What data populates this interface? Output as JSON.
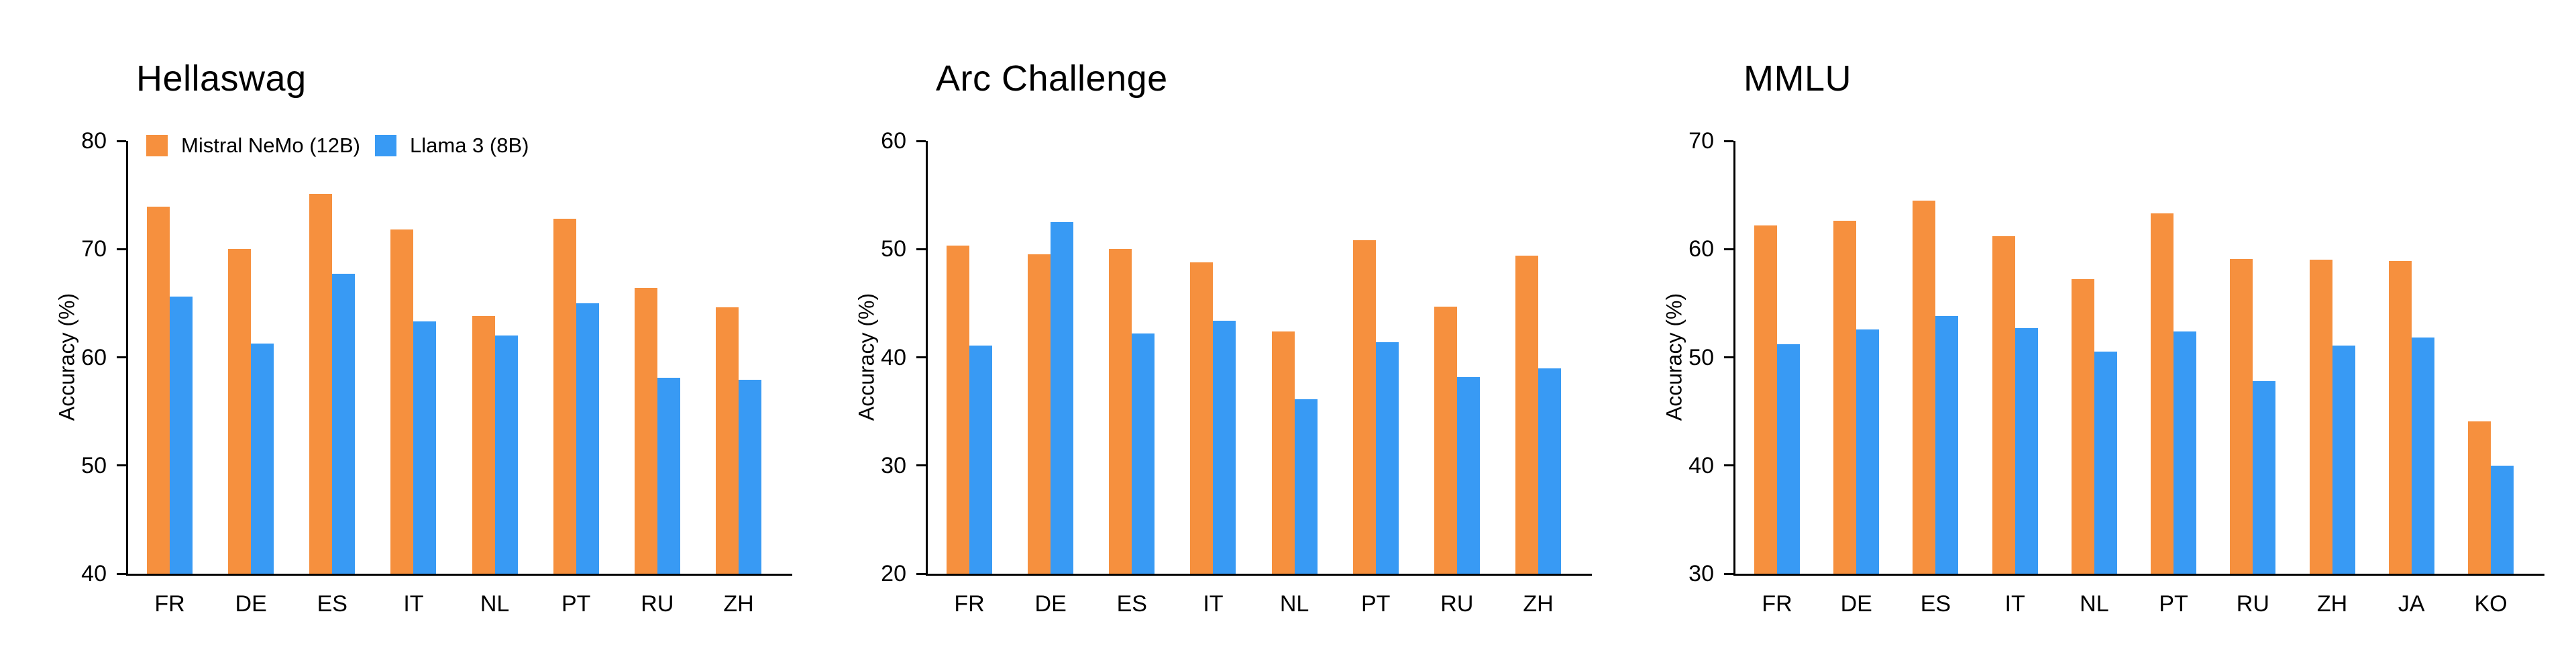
{
  "figure": {
    "y_axis_title": "Accuracy (%)",
    "colors": {
      "mistral_orange": "#F6903E",
      "llama_blue": "#389AF4"
    }
  },
  "legend": {
    "items": [
      {
        "label": "Mistral NeMo (12B)",
        "color": "#F6903E"
      },
      {
        "label": "Llama 3 (8B)",
        "color": "#389AF4"
      }
    ]
  },
  "chart_data": [
    {
      "type": "bar",
      "title": "Hellaswag",
      "ylabel": "Accuracy (%)",
      "ylim": [
        40,
        80
      ],
      "yticks": [
        80,
        70,
        60,
        50,
        40
      ],
      "grid": false,
      "legend_position": "top-left inside first panel only",
      "categories": [
        "FR",
        "DE",
        "ES",
        "IT",
        "NL",
        "PT",
        "RU",
        "ZH"
      ],
      "series": [
        {
          "name": "Mistral NeMo (12B)",
          "color": "#F6903E",
          "values": [
            73.9,
            70.0,
            75.1,
            71.8,
            63.8,
            72.8,
            66.4,
            64.6
          ]
        },
        {
          "name": "Llama 3 (8B)",
          "color": "#389AF4",
          "values": [
            65.6,
            61.3,
            67.7,
            63.3,
            62.0,
            65.0,
            58.1,
            57.9
          ]
        }
      ]
    },
    {
      "type": "bar",
      "title": "Arc Challenge",
      "ylabel": "Accuracy (%)",
      "ylim": [
        20,
        60
      ],
      "yticks": [
        60,
        50,
        40,
        30,
        20
      ],
      "grid": false,
      "categories": [
        "FR",
        "DE",
        "ES",
        "IT",
        "NL",
        "PT",
        "RU",
        "ZH"
      ],
      "series": [
        {
          "name": "Mistral NeMo (12B)",
          "color": "#F6903E",
          "values": [
            50.3,
            49.5,
            50.0,
            48.8,
            42.4,
            50.8,
            44.7,
            49.4
          ]
        },
        {
          "name": "Llama 3 (8B)",
          "color": "#389AF4",
          "values": [
            41.1,
            52.5,
            42.2,
            43.4,
            36.1,
            41.4,
            38.2,
            39.0
          ]
        }
      ]
    },
    {
      "type": "bar",
      "title": "MMLU",
      "ylabel": "Accuracy (%)",
      "ylim": [
        30,
        70
      ],
      "yticks": [
        70,
        60,
        50,
        40,
        30
      ],
      "grid": false,
      "categories": [
        "FR",
        "DE",
        "ES",
        "IT",
        "NL",
        "PT",
        "RU",
        "ZH",
        "JA",
        "KO"
      ],
      "series": [
        {
          "name": "Mistral NeMo (12B)",
          "color": "#F6903E",
          "values": [
            62.2,
            62.6,
            64.5,
            61.2,
            57.2,
            63.3,
            59.1,
            59.0,
            58.9,
            44.1
          ]
        },
        {
          "name": "Llama 3 (8B)",
          "color": "#389AF4",
          "values": [
            51.2,
            52.6,
            53.8,
            52.7,
            50.5,
            52.4,
            47.8,
            51.1,
            51.8,
            40.0
          ]
        }
      ]
    }
  ]
}
